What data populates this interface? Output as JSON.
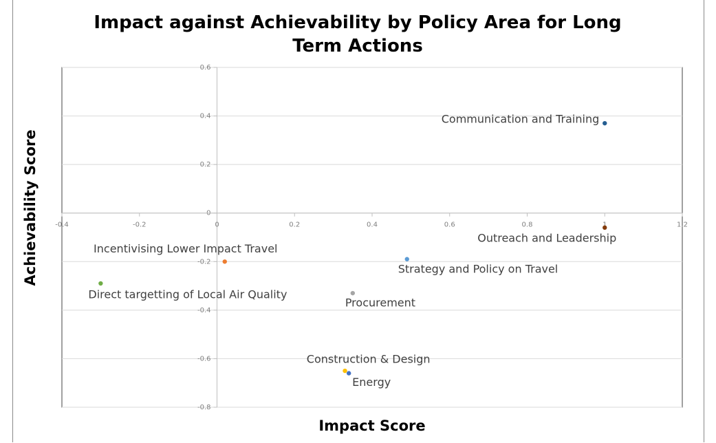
{
  "chart_data": {
    "type": "scatter",
    "title": "Impact against Achievability by Policy Area for Long Term Actions",
    "x_label": "Impact Score",
    "y_label": "Achievability Score",
    "xlim": [
      -0.4,
      1.2
    ],
    "xticks": [
      -0.4,
      -0.2,
      0,
      0.2,
      0.4,
      0.6,
      0.8,
      1,
      1.2
    ],
    "ylim": [
      -0.8,
      0.6
    ],
    "yticks": [
      -0.8,
      -0.6,
      -0.4,
      -0.2,
      0,
      0.2,
      0.4,
      0.6
    ],
    "grid": true,
    "points": [
      {
        "name": "Communication and Training",
        "color": "#255e91",
        "x": 1.0,
        "y": 0.37
      },
      {
        "name": "Outreach and Leadership",
        "color": "#843c0c",
        "x": 1.0,
        "y": -0.06
      },
      {
        "name": "Incentivising Lower Impact Travel",
        "color": "#ed7d31",
        "x": 0.02,
        "y": -0.2
      },
      {
        "name": "Direct targetting of Local Air Quality",
        "color": "#70ad47",
        "x": -0.3,
        "y": -0.29
      },
      {
        "name": "Strategy and Policy on Travel",
        "color": "#5b9bd5",
        "x": 0.49,
        "y": -0.19
      },
      {
        "name": "Procurement",
        "color": "#a5a5a5",
        "x": 0.35,
        "y": -0.33
      },
      {
        "name": "Construction & Design",
        "color": "#ffc000",
        "x": 0.33,
        "y": -0.65
      },
      {
        "name": "Energy",
        "color": "#4472c4",
        "x": 0.34,
        "y": -0.66
      }
    ]
  }
}
